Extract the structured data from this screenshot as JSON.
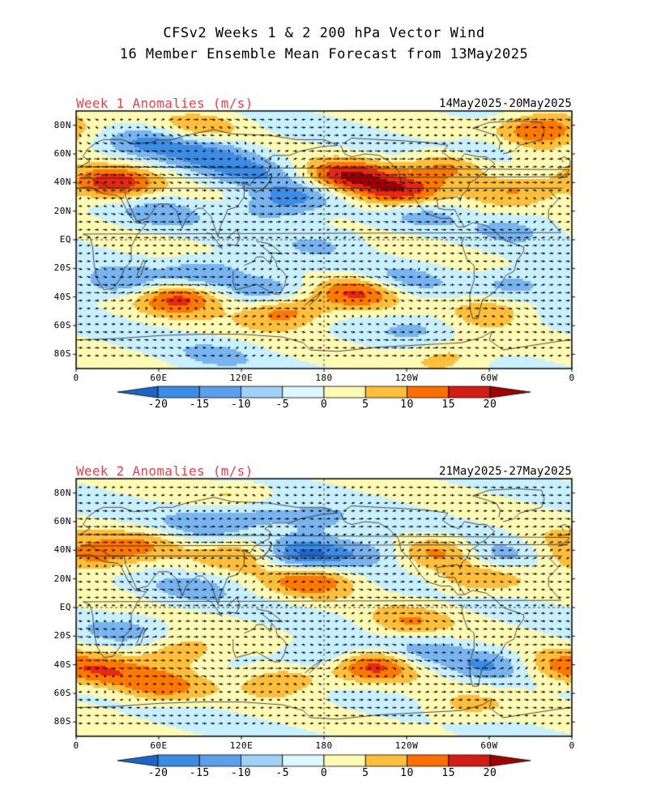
{
  "title_line1": "CFSv2 Weeks 1 & 2 200 hPa Vector Wind",
  "title_line2": "16 Member Ensemble Mean Forecast from 13May2025",
  "colors": {
    "title_red": "#e8404a",
    "scale": [
      "#1e64c8",
      "#3c8ce6",
      "#78b4f0",
      "#c8f0ff",
      "#fffab4",
      "#ffbe3c",
      "#ff7800",
      "#e62814",
      "#a00000"
    ]
  },
  "lat_labels": [
    "80N",
    "60N",
    "40N",
    "20N",
    "EQ",
    "20S",
    "40S",
    "60S",
    "80S"
  ],
  "lon_labels": [
    "0",
    "60E",
    "120E",
    "180",
    "120W",
    "60W",
    "0"
  ],
  "colorbar_labels": [
    "-20",
    "-15",
    "-10",
    "-5",
    "0",
    "5",
    "10",
    "15",
    "20"
  ],
  "panels": [
    {
      "title": "Week 1 Anomalies (m/s)",
      "date_range": "14May2025-20May2025",
      "anomalies": [
        {
          "lon": 25,
          "lat": 40,
          "v": 18
        },
        {
          "lon": 55,
          "lat": 70,
          "v": -10
        },
        {
          "lon": 95,
          "lat": 62,
          "v": -11
        },
        {
          "lon": 125,
          "lat": 50,
          "v": -9
        },
        {
          "lon": 160,
          "lat": 33,
          "v": -9
        },
        {
          "lon": 195,
          "lat": 45,
          "v": 19
        },
        {
          "lon": 232,
          "lat": 34,
          "v": 18
        },
        {
          "lon": 272,
          "lat": 53,
          "v": 15
        },
        {
          "lon": 338,
          "lat": 78,
          "v": 17
        },
        {
          "lon": 320,
          "lat": 36,
          "v": 11
        },
        {
          "lon": 290,
          "lat": 62,
          "v": -8
        },
        {
          "lon": 60,
          "lat": 20,
          "v": -7
        },
        {
          "lon": 140,
          "lat": 22,
          "v": -8
        },
        {
          "lon": 250,
          "lat": 20,
          "v": -6
        },
        {
          "lon": 75,
          "lat": -40,
          "v": 17
        },
        {
          "lon": 150,
          "lat": -50,
          "v": 14
        },
        {
          "lon": 205,
          "lat": -36,
          "v": 15
        },
        {
          "lon": 300,
          "lat": -48,
          "v": 10
        },
        {
          "lon": 30,
          "lat": -30,
          "v": -9
        },
        {
          "lon": 95,
          "lat": -22,
          "v": -10
        },
        {
          "lon": 140,
          "lat": -33,
          "v": -9
        },
        {
          "lon": 235,
          "lat": -28,
          "v": -7
        },
        {
          "lon": 320,
          "lat": -30,
          "v": -8
        },
        {
          "lon": 250,
          "lat": -60,
          "v": -6
        },
        {
          "lon": 100,
          "lat": -80,
          "v": -5
        },
        {
          "lon": 270,
          "lat": -80,
          "v": 8
        },
        {
          "lon": 90,
          "lat": 80,
          "v": 9
        },
        {
          "lon": 180,
          "lat": 0,
          "v": -5
        },
        {
          "lon": 320,
          "lat": 10,
          "v": -6
        }
      ]
    },
    {
      "title": "Week 2 Anomalies (m/s)",
      "date_range": "21May2025-27May2025",
      "anomalies": [
        {
          "lon": 10,
          "lat": 35,
          "v": 11
        },
        {
          "lon": 45,
          "lat": 45,
          "v": 8
        },
        {
          "lon": 90,
          "lat": 60,
          "v": -7
        },
        {
          "lon": 130,
          "lat": 68,
          "v": -9
        },
        {
          "lon": 175,
          "lat": 60,
          "v": -7
        },
        {
          "lon": 120,
          "lat": 38,
          "v": 10
        },
        {
          "lon": 165,
          "lat": 38,
          "v": -15
        },
        {
          "lon": 170,
          "lat": 20,
          "v": 14
        },
        {
          "lon": 215,
          "lat": 40,
          "v": -8
        },
        {
          "lon": 260,
          "lat": 40,
          "v": 10
        },
        {
          "lon": 310,
          "lat": 38,
          "v": -8
        },
        {
          "lon": 340,
          "lat": 45,
          "v": 6
        },
        {
          "lon": 85,
          "lat": 15,
          "v": -6
        },
        {
          "lon": 290,
          "lat": 20,
          "v": 8
        },
        {
          "lon": 240,
          "lat": -10,
          "v": 9
        },
        {
          "lon": 35,
          "lat": -15,
          "v": -6
        },
        {
          "lon": 75,
          "lat": -30,
          "v": 10
        },
        {
          "lon": 150,
          "lat": -50,
          "v": 11
        },
        {
          "lon": 180,
          "lat": -33,
          "v": -9
        },
        {
          "lon": 215,
          "lat": -40,
          "v": 16
        },
        {
          "lon": 250,
          "lat": -30,
          "v": -7
        },
        {
          "lon": 300,
          "lat": -40,
          "v": -9
        },
        {
          "lon": 345,
          "lat": -40,
          "v": 9
        },
        {
          "lon": 60,
          "lat": -55,
          "v": 12
        },
        {
          "lon": 20,
          "lat": -45,
          "v": 11
        },
        {
          "lon": 280,
          "lat": -70,
          "v": 6
        },
        {
          "lon": 120,
          "lat": 78,
          "v": 7
        }
      ]
    }
  ]
}
